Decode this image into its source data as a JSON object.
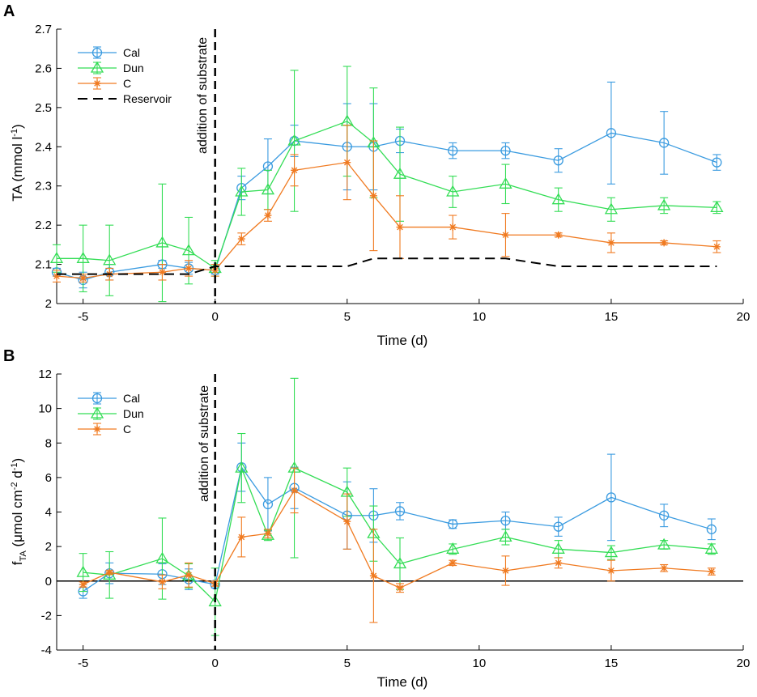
{
  "colors": {
    "Cal": "#3a9be0",
    "Dun": "#33dd55",
    "C": "#f07a20",
    "Reservoir": "#000000",
    "axis": "#000000"
  },
  "chart_data": [
    {
      "panel": "A",
      "type": "line",
      "xlabel": "Time (d)",
      "ylabel": {
        "base": "TA (mmol l",
        "sup": "-1",
        "tail": ")"
      },
      "xlim": [
        -6,
        20
      ],
      "ylim": [
        2,
        2.7
      ],
      "xticks": [
        -5,
        0,
        5,
        10,
        15,
        20
      ],
      "yticks": [
        2,
        2.1,
        2.2,
        2.3,
        2.4,
        2.5,
        2.6,
        2.7
      ],
      "annotation": "addition of substrate",
      "vline_x": 0,
      "legend": {
        "position": "top-left",
        "entries": [
          "Cal",
          "Dun",
          "C",
          "Reservoir"
        ]
      },
      "series": [
        {
          "name": "Cal",
          "marker": "circle",
          "x": [
            -6,
            -5,
            -4,
            -2,
            -1,
            0,
            1,
            2,
            3,
            5,
            6,
            7,
            9,
            11,
            13,
            15,
            17,
            19
          ],
          "y": [
            2.08,
            2.06,
            2.08,
            2.1,
            2.09,
            2.085,
            2.295,
            2.35,
            2.415,
            2.4,
            2.4,
            2.415,
            2.39,
            2.39,
            2.365,
            2.435,
            2.41,
            2.36
          ],
          "err": [
            0.01,
            0.02,
            0.02,
            0.01,
            0.015,
            0.01,
            0.03,
            0.07,
            0.04,
            0.11,
            0.11,
            0.03,
            0.02,
            0.02,
            0.03,
            0.13,
            0.08,
            0.02
          ]
        },
        {
          "name": "Dun",
          "marker": "triangle",
          "x": [
            -6,
            -5,
            -4,
            -2,
            -1,
            0,
            1,
            2,
            3,
            5,
            6,
            7,
            9,
            11,
            13,
            15,
            17,
            19
          ],
          "y": [
            2.115,
            2.115,
            2.11,
            2.155,
            2.135,
            2.09,
            2.285,
            2.29,
            2.415,
            2.465,
            2.41,
            2.33,
            2.285,
            2.305,
            2.265,
            2.24,
            2.25,
            2.245
          ],
          "err": [
            0.035,
            0.085,
            0.09,
            0.15,
            0.085,
            0.02,
            0.06,
            0.05,
            0.18,
            0.14,
            0.14,
            0.12,
            0.04,
            0.05,
            0.03,
            0.03,
            0.02,
            0.015
          ]
        },
        {
          "name": "C",
          "marker": "star",
          "x": [
            -6,
            -5,
            -4,
            -2,
            -1,
            0,
            1,
            2,
            3,
            5,
            6,
            7,
            9,
            11,
            13,
            15,
            17,
            19
          ],
          "y": [
            2.07,
            2.065,
            2.075,
            2.08,
            2.09,
            2.085,
            2.165,
            2.225,
            2.34,
            2.36,
            2.275,
            2.195,
            2.195,
            2.175,
            2.175,
            2.155,
            2.155,
            2.145
          ],
          "err": [
            0.015,
            0.01,
            0.015,
            0.02,
            0.02,
            0.015,
            0.015,
            0.015,
            0.04,
            0.095,
            0.14,
            0.08,
            0.03,
            0.055,
            0.005,
            0.025,
            0.005,
            0.015
          ]
        },
        {
          "name": "Reservoir",
          "style": "dashed",
          "x": [
            -6,
            -1,
            0,
            5,
            6,
            11,
            13,
            19
          ],
          "y": [
            2.075,
            2.075,
            2.095,
            2.095,
            2.115,
            2.115,
            2.095,
            2.095
          ]
        }
      ]
    },
    {
      "panel": "B",
      "type": "line",
      "xlabel": "Time (d)",
      "ylabel": {
        "base": "f",
        "sub": "TA",
        "mid": " (μmol cm",
        "sup1": "-2",
        "mid2": " d",
        "sup2": "-1",
        "tail": ")"
      },
      "xlim": [
        -6,
        20
      ],
      "ylim": [
        -4,
        12
      ],
      "xticks": [
        -5,
        0,
        5,
        10,
        15,
        20
      ],
      "yticks": [
        -4,
        -2,
        0,
        2,
        4,
        6,
        8,
        10,
        12
      ],
      "annotation": "addition of substrate",
      "vline_x": 0,
      "hline_y": 0,
      "legend": {
        "position": "top-left",
        "entries": [
          "Cal",
          "Dun",
          "C"
        ]
      },
      "series": [
        {
          "name": "Cal",
          "marker": "circle",
          "x": [
            -5,
            -4,
            -2,
            -1,
            0,
            1,
            2,
            3,
            5,
            6,
            7,
            9,
            11,
            13,
            15,
            17,
            18.8
          ],
          "y": [
            -0.6,
            0.45,
            0.4,
            0.1,
            -0.2,
            6.6,
            4.45,
            5.4,
            3.8,
            3.8,
            4.05,
            3.3,
            3.5,
            3.15,
            4.85,
            3.8,
            3.0
          ],
          "err": [
            0.4,
            0.6,
            0.6,
            0.6,
            0.2,
            1.4,
            1.55,
            1.2,
            1.95,
            1.55,
            0.5,
            0.25,
            0.5,
            0.55,
            2.5,
            0.65,
            0.6
          ]
        },
        {
          "name": "Dun",
          "marker": "triangle",
          "x": [
            -5,
            -4,
            -2,
            -1,
            0,
            1,
            2,
            3,
            5,
            6,
            7,
            9,
            11,
            13,
            15,
            17,
            18.8
          ],
          "y": [
            0.5,
            0.35,
            1.3,
            0.3,
            -1.2,
            6.55,
            2.65,
            6.55,
            5.15,
            2.75,
            1.0,
            1.85,
            2.55,
            1.85,
            1.65,
            2.1,
            1.85
          ],
          "err": [
            1.1,
            1.35,
            2.35,
            0.7,
            1.95,
            2.0,
            0.3,
            5.2,
            1.4,
            1.6,
            1.5,
            0.3,
            0.45,
            0.5,
            0.4,
            0.25,
            0.3
          ]
        },
        {
          "name": "C",
          "marker": "star",
          "x": [
            -5,
            -4,
            -2,
            -1,
            0,
            1,
            2,
            3,
            5,
            6,
            7,
            9,
            11,
            13,
            15,
            17,
            18.8
          ],
          "y": [
            -0.2,
            0.5,
            -0.05,
            0.35,
            -0.15,
            2.55,
            2.75,
            5.25,
            3.45,
            0.3,
            -0.4,
            1.05,
            0.6,
            1.05,
            0.6,
            0.75,
            0.55
          ],
          "err": [
            0.15,
            0.1,
            0.4,
            0.7,
            0.15,
            1.15,
            0.25,
            1.3,
            1.6,
            2.7,
            0.25,
            0.15,
            0.85,
            0.3,
            0.6,
            0.2,
            0.2
          ]
        }
      ]
    }
  ]
}
